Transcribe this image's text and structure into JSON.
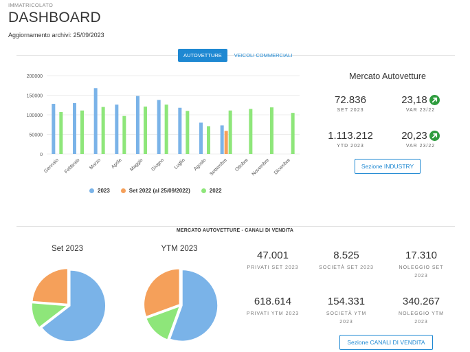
{
  "header": {
    "top_label": "IMMATRICOLATO",
    "title": "DASHBOARD",
    "updated_prefix": "Aggiornamento archivi:",
    "updated_date": "25/09/2023"
  },
  "tabs": [
    {
      "label": "AUTOVETTURE",
      "active": true
    },
    {
      "label": "VEICOLI COMMERCIALI",
      "active": false
    }
  ],
  "colors": {
    "accent": "#1e88d2",
    "series_2023": "#7ab3e8",
    "series_set2022": "#f5a05a",
    "series_2022": "#8ee67a",
    "up_arrow": "#2e9c3e"
  },
  "chart_data": {
    "type": "bar",
    "categories": [
      "Gennaio",
      "Febbraio",
      "Marzo",
      "Aprile",
      "Maggio",
      "Giugno",
      "Luglio",
      "Agosto",
      "Settembre",
      "Ottobre",
      "Novembre",
      "Dicembre"
    ],
    "series": [
      {
        "name": "2023",
        "color": "#7ab3e8",
        "values": [
          128000,
          130000,
          168000,
          126000,
          148000,
          138000,
          118000,
          80000,
          73000,
          null,
          null,
          null
        ]
      },
      {
        "name": "Set 2022 (al 25/09/2022)",
        "color": "#f5a05a",
        "values": [
          null,
          null,
          null,
          null,
          null,
          null,
          null,
          null,
          59000,
          null,
          null,
          null
        ]
      },
      {
        "name": "2022",
        "color": "#8ee67a",
        "values": [
          107000,
          111000,
          120000,
          97000,
          121000,
          126000,
          110000,
          71000,
          111000,
          115000,
          119000,
          105000
        ]
      }
    ],
    "yticks": [
      "0",
      "50000",
      "100000",
      "150000",
      "200000"
    ],
    "ylim": [
      0,
      200000
    ],
    "legend": "bottom",
    "grid": true
  },
  "market": {
    "title": "Mercato Autovetture",
    "month_value": "72.836",
    "month_label": "SET 2023",
    "month_var": "23,18",
    "month_var_label": "VAR 23/22",
    "ytd_value": "1.113.212",
    "ytd_label": "YTD 2023",
    "ytd_var": "20,23",
    "ytd_var_label": "VAR 23/22",
    "button": "Sezione INDUSTRY"
  },
  "channels": {
    "section_title": "MERCATO AUTOVETTURE - CANALI DI VENDITA",
    "pie_set_title": "Set 2023",
    "pie_ytm_title": "YTM 2023",
    "pies": [
      {
        "slices": [
          {
            "name": "Privati",
            "value": 47001,
            "color": "#7ab3e8"
          },
          {
            "name": "Società",
            "value": 8525,
            "color": "#8ee67a"
          },
          {
            "name": "Noleggio",
            "value": 17310,
            "color": "#f5a05a"
          }
        ]
      },
      {
        "slices": [
          {
            "name": "Privati",
            "value": 618614,
            "color": "#7ab3e8"
          },
          {
            "name": "Società",
            "value": 154331,
            "color": "#8ee67a"
          },
          {
            "name": "Noleggio",
            "value": 340267,
            "color": "#f5a05a"
          }
        ]
      }
    ],
    "privati_set": "47.001",
    "privati_set_label": "PRIVATI SET 2023",
    "societa_set": "8.525",
    "societa_set_label": "SOCIETÀ SET 2023",
    "noleggio_set": "17.310",
    "noleggio_set_label": "NOLEGGIO SET 2023",
    "privati_ytm": "618.614",
    "privati_ytm_label": "PRIVATI YTM 2023",
    "societa_ytm": "154.331",
    "societa_ytm_label": "SOCIETÀ YTM 2023",
    "noleggio_ytm": "340.267",
    "noleggio_ytm_label": "NOLEGGIO YTM 2023",
    "button": "Sezione CANALI DI VENDITA"
  }
}
